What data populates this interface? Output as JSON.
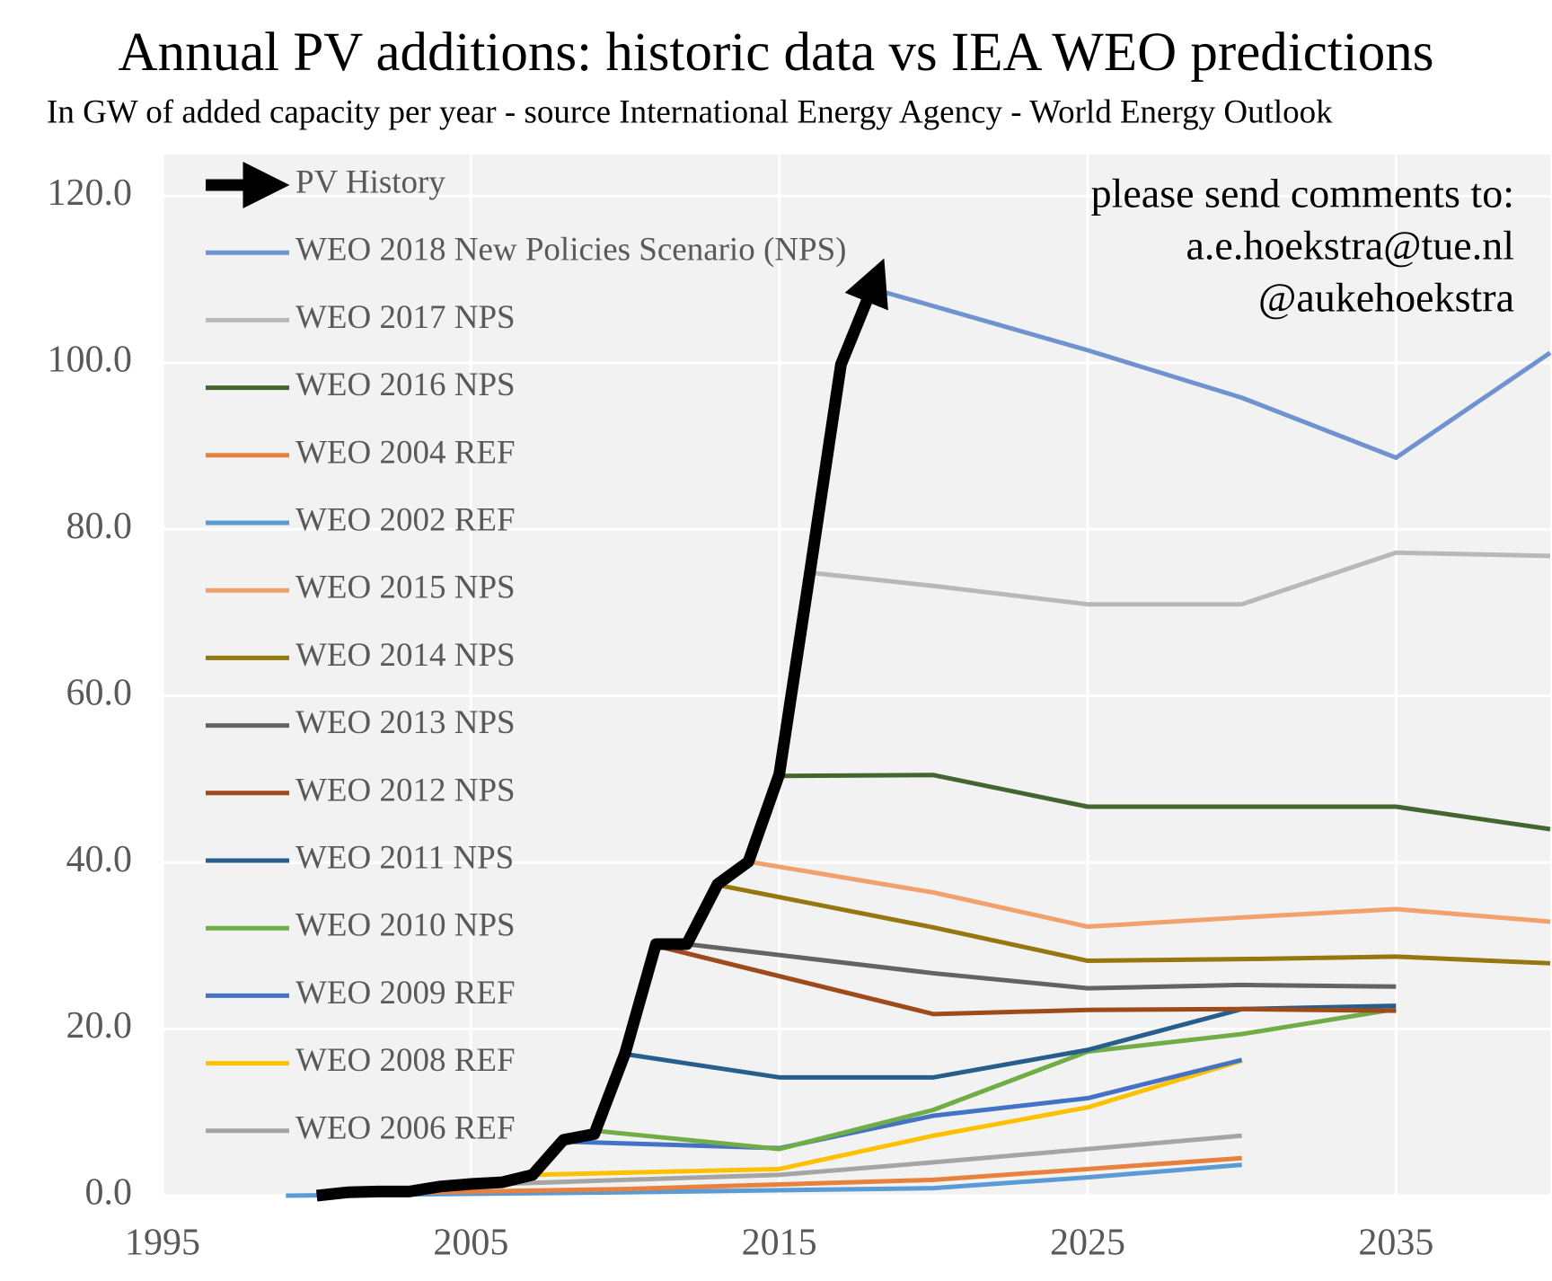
{
  "chart_data": {
    "type": "line",
    "title": "Annual PV additions: historic data vs IEA WEO predictions",
    "subtitle": "In GW of added capacity per year - source International Energy Agency - World Energy Outlook",
    "annotation": [
      "please send comments to:",
      "a.e.hoekstra@tue.nl",
      "@aukehoekstra"
    ],
    "xlim": [
      1995,
      2040
    ],
    "xticks": [
      1995,
      2005,
      2015,
      2025,
      2035
    ],
    "ylim": [
      0,
      125
    ],
    "yticks": [
      {
        "value": 0,
        "label": "0.0"
      },
      {
        "value": 20,
        "label": "20.0"
      },
      {
        "value": 40,
        "label": "40.0"
      },
      {
        "value": 60,
        "label": "60.0"
      },
      {
        "value": 80,
        "label": "80.0"
      },
      {
        "value": 100,
        "label": "100.0"
      },
      {
        "value": 120,
        "label": "120.0"
      }
    ],
    "grid": true,
    "legend": "upper left",
    "series": [
      {
        "name": "PV History",
        "color": "#000000",
        "x": [
          2000,
          2001,
          2002,
          2003,
          2004,
          2005,
          2006,
          2007,
          2008,
          2009,
          2010,
          2011,
          2012,
          2013,
          2014,
          2015,
          2016,
          2017,
          2018
        ],
        "values": [
          0,
          0.4,
          0.5,
          0.5,
          1.1,
          1.4,
          1.6,
          2.5,
          6.7,
          7.4,
          17.1,
          30.2,
          30.2,
          37.4,
          40.1,
          50.6,
          75.0,
          99.8,
          108.9
        ]
      },
      {
        "name": "WEO 2018 New Policies Scenario (NPS)",
        "color": "#6f93cf",
        "x": [
          2018,
          2020,
          2025,
          2030,
          2035,
          2040
        ],
        "values": [
          108.9,
          106.8,
          101.5,
          95.8,
          88.6,
          101.2
        ]
      },
      {
        "name": "WEO 2017 NPS",
        "color": "#b8b8b8",
        "x": [
          2016,
          2020,
          2025,
          2030,
          2035,
          2040
        ],
        "values": [
          74.8,
          73.2,
          71.0,
          71.0,
          77.2,
          76.8
        ]
      },
      {
        "name": "WEO 2016 NPS",
        "color": "#44652f",
        "x": [
          2015,
          2020,
          2025,
          2030,
          2035,
          2040
        ],
        "values": [
          50.4,
          50.5,
          46.7,
          46.7,
          46.7,
          44.0
        ]
      },
      {
        "name": "WEO 2004 REF",
        "color": "#e8813e",
        "x": [
          2002,
          2010,
          2020,
          2025,
          2030
        ],
        "values": [
          0.3,
          0.8,
          1.9,
          3.2,
          4.5
        ]
      },
      {
        "name": "WEO 2002 REF",
        "color": "#5b9bd5",
        "x": [
          1999,
          2010,
          2020,
          2025,
          2030
        ],
        "values": [
          0,
          0.4,
          0.9,
          2.2,
          3.7
        ]
      },
      {
        "name": "WEO 2015 NPS",
        "color": "#f2a06c",
        "x": [
          2014,
          2020,
          2025,
          2030,
          2035,
          2040
        ],
        "values": [
          40.1,
          36.4,
          32.3,
          33.4,
          34.4,
          32.9
        ]
      },
      {
        "name": "WEO 2014 NPS",
        "color": "#957710",
        "x": [
          2013,
          2020,
          2025,
          2030,
          2035,
          2040
        ],
        "values": [
          37.3,
          32.2,
          28.2,
          28.4,
          28.7,
          27.9
        ]
      },
      {
        "name": "WEO 2013 NPS",
        "color": "#636363",
        "x": [
          2012,
          2020,
          2025,
          2030,
          2035
        ],
        "values": [
          30.2,
          26.7,
          24.9,
          25.3,
          25.1
        ]
      },
      {
        "name": "WEO 2012 NPS",
        "color": "#9e4a1a",
        "x": [
          2011,
          2020,
          2025,
          2030,
          2035
        ],
        "values": [
          30.0,
          21.8,
          22.3,
          22.4,
          22.2
        ]
      },
      {
        "name": "WEO 2011 NPS",
        "color": "#275e8c",
        "x": [
          2010,
          2015,
          2020,
          2025,
          2030,
          2035
        ],
        "values": [
          17.0,
          14.2,
          14.2,
          17.5,
          22.4,
          22.8
        ]
      },
      {
        "name": "WEO 2010 NPS",
        "color": "#70ad47",
        "x": [
          2009,
          2015,
          2020,
          2025,
          2030,
          2035
        ],
        "values": [
          7.8,
          5.6,
          10.3,
          17.3,
          19.4,
          22.4
        ]
      },
      {
        "name": "WEO 2009 REF",
        "color": "#4472c4",
        "x": [
          2008,
          2015,
          2020,
          2025,
          2030
        ],
        "values": [
          6.5,
          5.7,
          9.6,
          11.7,
          16.3
        ]
      },
      {
        "name": "WEO 2008 REF",
        "color": "#ffc000",
        "x": [
          2007,
          2015,
          2020,
          2025,
          2030
        ],
        "values": [
          2.5,
          3.2,
          7.2,
          10.6,
          16.2
        ]
      },
      {
        "name": "WEO 2006 REF",
        "color": "#a5a5a5",
        "x": [
          2005,
          2015,
          2020,
          2025,
          2030
        ],
        "values": [
          1.3,
          2.5,
          4.0,
          5.6,
          7.2
        ]
      }
    ]
  }
}
